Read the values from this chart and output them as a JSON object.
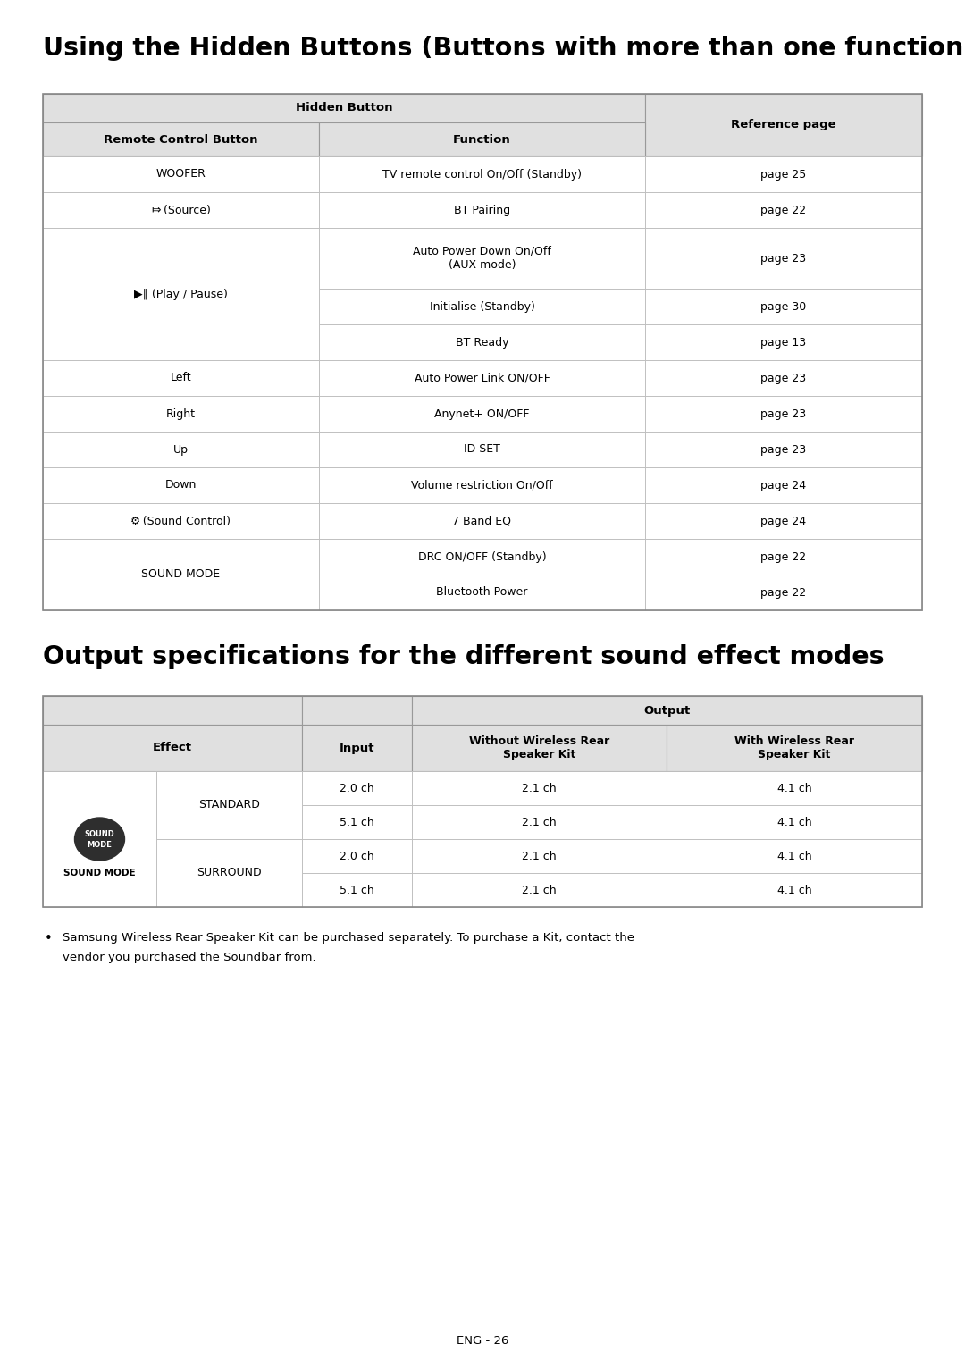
{
  "title1": "Using the Hidden Buttons (Buttons with more than one function)",
  "title2": "Output specifications for the different sound effect modes",
  "page_footer": "ENG - 26",
  "bg_color": "#ffffff",
  "header_bg": "#e0e0e0",
  "table1_rows": [
    [
      "WOOFER",
      "TV remote control On/Off (Standby)",
      "page 25"
    ],
    [
      "⤇ (Source)",
      "BT Pairing",
      "page 22"
    ],
    [
      "▶‖ (Play / Pause)",
      "Auto Power Down On/Off\n(AUX mode)",
      "page 23"
    ],
    [
      "",
      "Initialise (Standby)",
      "page 30"
    ],
    [
      "",
      "BT Ready",
      "page 13"
    ],
    [
      "Left",
      "Auto Power Link ON/OFF",
      "page 23"
    ],
    [
      "Right",
      "Anynet+ ON/OFF",
      "page 23"
    ],
    [
      "Up",
      "ID SET",
      "page 23"
    ],
    [
      "Down",
      "Volume restriction On/Off",
      "page 24"
    ],
    [
      "⚙ (Sound Control)",
      "7 Band EQ",
      "page 24"
    ],
    [
      "SOUND MODE",
      "DRC ON/OFF (Standby)",
      "page 22"
    ],
    [
      "",
      "Bluetooth Power",
      "page 22"
    ]
  ],
  "table1_row_heights": [
    40,
    40,
    68,
    40,
    40,
    40,
    40,
    40,
    40,
    40,
    40,
    40
  ],
  "table1_merged_col0": [
    {
      "rows": [
        0
      ],
      "label": "WOOFER",
      "italic": false
    },
    {
      "rows": [
        1
      ],
      "label": "⤇ (Source)",
      "italic": false
    },
    {
      "rows": [
        2,
        3,
        4
      ],
      "label": "▶‖ (Play / Pause)",
      "italic": false
    },
    {
      "rows": [
        5
      ],
      "label": "Left",
      "italic": false
    },
    {
      "rows": [
        6
      ],
      "label": "Right",
      "italic": false
    },
    {
      "rows": [
        7
      ],
      "label": "Up",
      "italic": false
    },
    {
      "rows": [
        8
      ],
      "label": "Down",
      "italic": false
    },
    {
      "rows": [
        9
      ],
      "label": "⚙ (Sound Control)",
      "italic": false
    },
    {
      "rows": [
        10,
        11
      ],
      "label": "SOUND MODE",
      "italic": false
    }
  ],
  "table2_rows": [
    [
      "STANDARD",
      "2.0 ch",
      "2.1 ch",
      "4.1 ch"
    ],
    [
      "STANDARD",
      "5.1 ch",
      "2.1 ch",
      "4.1 ch"
    ],
    [
      "SURROUND",
      "2.0 ch",
      "2.1 ch",
      "4.1 ch"
    ],
    [
      "SURROUND",
      "5.1 ch",
      "2.1 ch",
      "4.1 ch"
    ]
  ],
  "bullet_text1": "Samsung Wireless Rear Speaker Kit can be purchased separately. To purchase a Kit, contact the",
  "bullet_text2": "vendor you purchased the Soundbar from."
}
